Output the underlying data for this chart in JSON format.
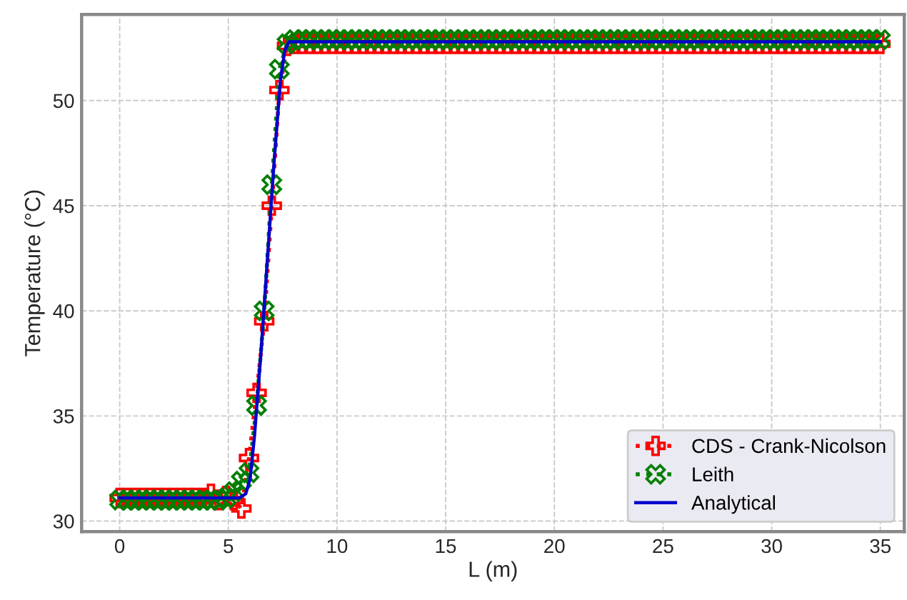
{
  "chart_data": {
    "type": "line",
    "xlabel": "L (m)",
    "ylabel": "Temperature (°C)",
    "x": [
      0,
      0.35,
      0.7,
      1.05,
      1.4,
      1.75,
      2.1,
      2.45,
      2.8,
      3.15,
      3.5,
      3.85,
      4.2,
      4.55,
      4.9,
      5.25,
      5.6,
      5.95,
      6.3,
      6.65,
      7,
      7.35,
      7.7,
      8.05,
      8.4,
      8.75,
      9.1,
      9.45,
      9.8,
      10.15,
      10.5,
      10.85,
      11.2,
      11.55,
      11.9,
      12.25,
      12.6,
      12.95,
      13.3,
      13.65,
      14,
      14.35,
      14.7,
      15.05,
      15.4,
      15.75,
      16.1,
      16.45,
      16.8,
      17.15,
      17.5,
      17.85,
      18.2,
      18.55,
      18.9,
      19.25,
      19.6,
      19.95,
      20.3,
      20.65,
      21,
      21.35,
      21.7,
      22.05,
      22.4,
      22.75,
      23.1,
      23.45,
      23.8,
      24.15,
      24.5,
      24.85,
      25.2,
      25.55,
      25.9,
      26.25,
      26.6,
      26.95,
      27.3,
      27.65,
      28,
      28.35,
      28.7,
      29.05,
      29.4,
      29.75,
      30.1,
      30.45,
      30.8,
      31.15,
      31.5,
      31.85,
      32.2,
      32.55,
      32.9,
      33.25,
      33.6,
      33.95,
      34.3,
      34.65,
      35
    ],
    "series": [
      {
        "name": "CDS - Crank-Nicolson",
        "color": "#ff0000",
        "marker": "plus",
        "line_style": "dotted",
        "values": [
          31.1,
          31.1,
          31.1,
          31.1,
          31.1,
          31.1,
          31.1,
          31.1,
          31.1,
          31.1,
          31.1,
          31.1,
          31.3,
          31.0,
          31.2,
          31.0,
          30.6,
          33.0,
          36.1,
          39.5,
          45.0,
          50.5,
          52.6,
          52.7,
          52.7,
          52.7,
          52.7,
          52.7,
          52.7,
          52.7,
          52.7,
          52.7,
          52.7,
          52.7,
          52.7,
          52.7,
          52.7,
          52.7,
          52.7,
          52.7,
          52.7,
          52.7,
          52.7,
          52.7,
          52.7,
          52.7,
          52.7,
          52.7,
          52.7,
          52.7,
          52.7,
          52.7,
          52.7,
          52.7,
          52.7,
          52.7,
          52.7,
          52.7,
          52.7,
          52.7,
          52.7,
          52.7,
          52.7,
          52.7,
          52.7,
          52.7,
          52.7,
          52.7,
          52.7,
          52.7,
          52.7,
          52.7,
          52.7,
          52.7,
          52.7,
          52.7,
          52.7,
          52.7,
          52.7,
          52.7,
          52.7,
          52.7,
          52.7,
          52.7,
          52.7,
          52.7,
          52.7,
          52.7,
          52.7,
          52.7,
          52.7,
          52.7,
          52.7,
          52.7,
          52.7,
          52.7,
          52.7,
          52.7,
          52.7,
          52.7,
          52.7
        ]
      },
      {
        "name": "Leith",
        "color": "#007f00",
        "marker": "cross",
        "line_style": "dotted",
        "values": [
          31.0,
          31.0,
          31.0,
          31.0,
          31.0,
          31.0,
          31.0,
          31.0,
          31.0,
          31.0,
          31.0,
          31.0,
          31.0,
          31.0,
          31.1,
          31.4,
          31.9,
          32.3,
          35.5,
          40.0,
          46.0,
          51.5,
          52.7,
          52.9,
          52.9,
          52.9,
          52.9,
          52.9,
          52.9,
          52.9,
          52.9,
          52.9,
          52.9,
          52.9,
          52.9,
          52.9,
          52.9,
          52.9,
          52.9,
          52.9,
          52.9,
          52.9,
          52.9,
          52.9,
          52.9,
          52.9,
          52.9,
          52.9,
          52.9,
          52.9,
          52.9,
          52.9,
          52.9,
          52.9,
          52.9,
          52.9,
          52.9,
          52.9,
          52.9,
          52.9,
          52.9,
          52.9,
          52.9,
          52.9,
          52.9,
          52.9,
          52.9,
          52.9,
          52.9,
          52.9,
          52.9,
          52.9,
          52.9,
          52.9,
          52.9,
          52.9,
          52.9,
          52.9,
          52.9,
          52.9,
          52.9,
          52.9,
          52.9,
          52.9,
          52.9,
          52.9,
          52.9,
          52.9,
          52.9,
          52.9,
          52.9,
          52.9,
          52.9,
          52.9,
          52.9,
          52.9,
          52.9,
          52.9,
          52.9,
          52.9,
          52.9
        ]
      },
      {
        "name": "Analytical",
        "color": "#0000cc",
        "marker": "none",
        "line_style": "solid",
        "x": [
          0,
          5.5,
          5.8,
          6.0,
          6.2,
          6.5,
          6.8,
          7.1,
          7.4,
          7.6,
          7.8,
          35
        ],
        "values": [
          31.1,
          31.1,
          31.3,
          32.0,
          34.0,
          38.0,
          42.5,
          47.0,
          51.0,
          52.4,
          52.8,
          52.8
        ]
      }
    ],
    "xlim": [
      -1.75,
      36.1
    ],
    "ylim": [
      29.5,
      54.1
    ],
    "xticks": [
      0,
      5,
      10,
      15,
      20,
      25,
      30,
      35
    ],
    "yticks": [
      30,
      35,
      40,
      45,
      50
    ],
    "grid": true,
    "legend": "lower right"
  }
}
